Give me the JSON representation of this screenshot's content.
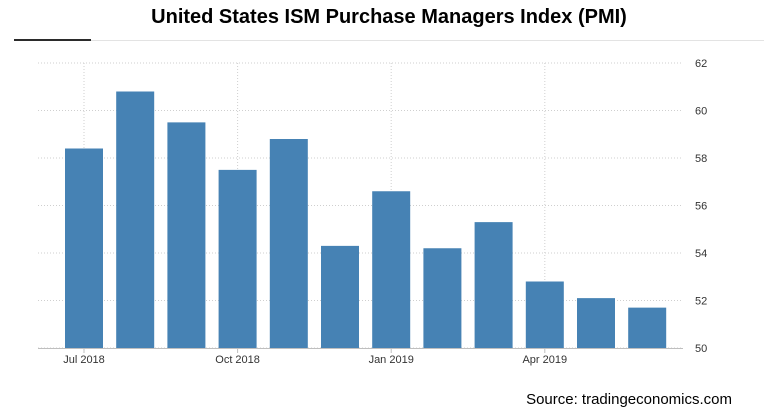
{
  "chart_data": {
    "type": "bar",
    "title": "United States ISM Purchase Managers Index (PMI)",
    "xlabel": "",
    "ylabel": "",
    "ylim": [
      50,
      62
    ],
    "yticks": [
      "62",
      "60",
      "58",
      "56",
      "54",
      "52",
      "50"
    ],
    "y_axis_side": "right",
    "grid": true,
    "x_tick_labels": [
      {
        "label": "Jul 2018",
        "index": 0
      },
      {
        "label": "Oct 2018",
        "index": 3
      },
      {
        "label": "Jan 2019",
        "index": 6
      },
      {
        "label": "Apr 2019",
        "index": 9
      }
    ],
    "months": [
      "2018-07",
      "2018-08",
      "2018-09",
      "2018-10",
      "2018-11",
      "2018-12",
      "2019-01",
      "2019-02",
      "2019-03",
      "2019-04",
      "2019-05",
      "2019-06"
    ],
    "values": [
      58.4,
      60.8,
      59.5,
      57.5,
      58.8,
      54.3,
      56.6,
      54.2,
      55.3,
      52.8,
      52.1,
      51.7
    ],
    "bar_color": "#4682b4"
  },
  "source": "Source: tradingeconomics.com"
}
